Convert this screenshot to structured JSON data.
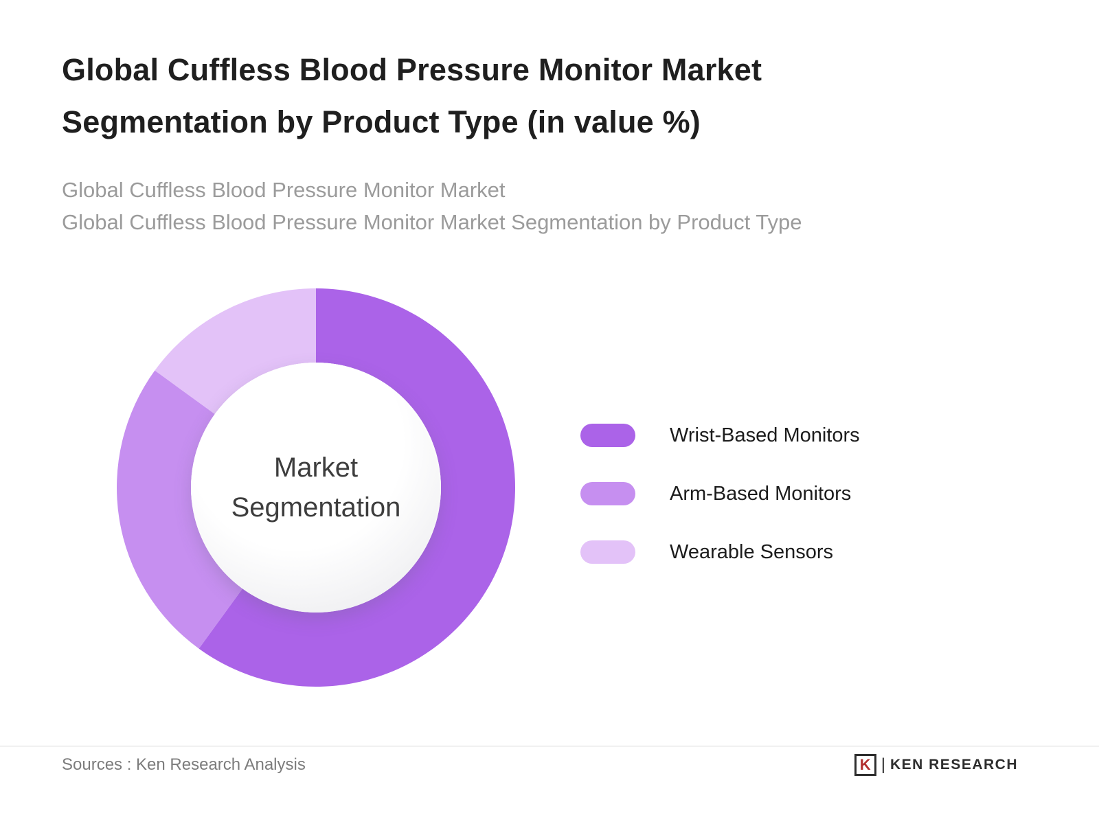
{
  "header": {
    "title": "Global Cuffless Blood Pressure Monitor Market Segmentation by Product Type (in value %)",
    "subtitle_line1": "Global Cuffless Blood Pressure Monitor Market",
    "subtitle_line2": "Global Cuffless Blood Pressure Monitor Market Segmentation by Product Type"
  },
  "chart_data": {
    "type": "pie",
    "donut": true,
    "center_label": "Market Segmentation",
    "start_angle_deg": 0,
    "direction": "clockwise",
    "legend_position": "right",
    "data_labels_shown": false,
    "segments": [
      {
        "label": "Wrist-Based Monitors",
        "value": 60,
        "color": "#AB63E8"
      },
      {
        "label": "Arm-Based Monitors",
        "value": 25,
        "color": "#C68FF0"
      },
      {
        "label": "Wearable Sensors",
        "value": 15,
        "color": "#E3C2F8"
      }
    ]
  },
  "footer": {
    "sources": "Sources : Ken Research Analysis",
    "logo_text": "KEN RESEARCH",
    "logo_mark": "K"
  }
}
